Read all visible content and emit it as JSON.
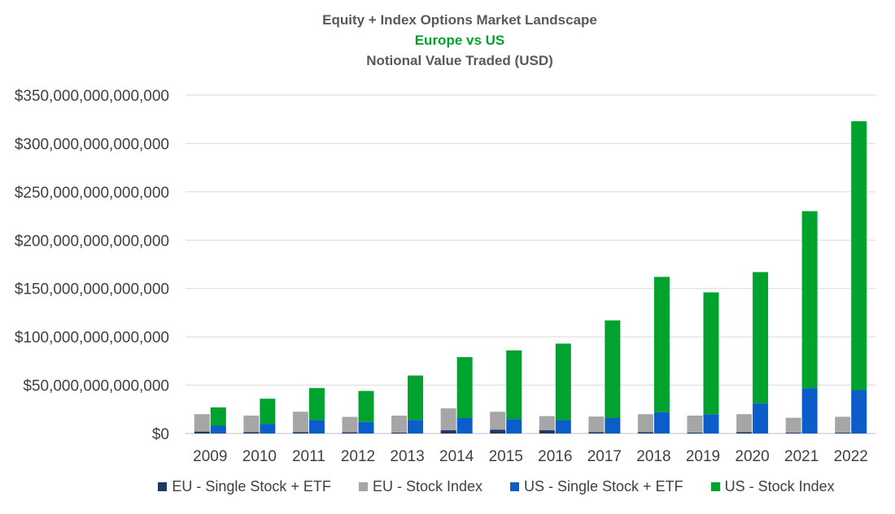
{
  "chart_data": {
    "type": "bar",
    "stacked_groups": true,
    "title": "Equity + Index Options Market Landscape",
    "subtitle": "Europe vs US",
    "subtitle2": "Notional Value Traded (USD)",
    "categories": [
      "2009",
      "2010",
      "2011",
      "2012",
      "2013",
      "2014",
      "2015",
      "2016",
      "2017",
      "2018",
      "2019",
      "2020",
      "2021",
      "2022"
    ],
    "ylim": [
      0,
      350000000000000
    ],
    "yticks": [
      "$0",
      "$50,000,000,000,000",
      "$100,000,000,000,000",
      "$150,000,000,000,000",
      "$200,000,000,000,000",
      "$250,000,000,000,000",
      "$300,000,000,000,000",
      "$350,000,000,000,000"
    ],
    "grid": true,
    "legend_position": "bottom",
    "series": [
      {
        "name": "EU - Single Stock + ETF",
        "group": "EU",
        "color": "#1f3864",
        "values": [
          2000000000000.0,
          1500000000000.0,
          1500000000000.0,
          1200000000000.0,
          1000000000000.0,
          3500000000000.0,
          4000000000000.0,
          3500000000000.0,
          1500000000000.0,
          1500000000000.0,
          1000000000000.0,
          1500000000000.0,
          800000000000.0,
          800000000000.0
        ]
      },
      {
        "name": "EU - Stock Index",
        "group": "EU",
        "color": "#a6a6a6",
        "values": [
          18000000000000.0,
          17000000000000.0,
          21000000000000.0,
          16000000000000.0,
          17500000000000.0,
          22500000000000.0,
          18500000000000.0,
          14500000000000.0,
          16000000000000.0,
          18500000000000.0,
          17500000000000.0,
          18500000000000.0,
          15500000000000.0,
          16500000000000.0
        ]
      },
      {
        "name": "US - Single Stock + ETF",
        "group": "US",
        "color": "#0b5dc9",
        "values": [
          8000000000000.0,
          10000000000000.0,
          14000000000000.0,
          12000000000000.0,
          14000000000000.0,
          16000000000000.0,
          15000000000000.0,
          14000000000000.0,
          16000000000000.0,
          22000000000000.0,
          20000000000000.0,
          31000000000000.0,
          47000000000000.0,
          45000000000000.0
        ]
      },
      {
        "name": "US - Stock Index",
        "group": "US",
        "color": "#00a32e",
        "values": [
          19000000000000.0,
          26000000000000.0,
          33000000000000.0,
          32000000000000.0,
          46000000000000.0,
          63000000000000.0,
          71000000000000.0,
          79000000000000.0,
          101000000000000.0,
          140000000000000.0,
          126000000000000.0,
          136000000000000.0,
          183000000000000.0,
          278000000000000.0
        ]
      }
    ]
  }
}
